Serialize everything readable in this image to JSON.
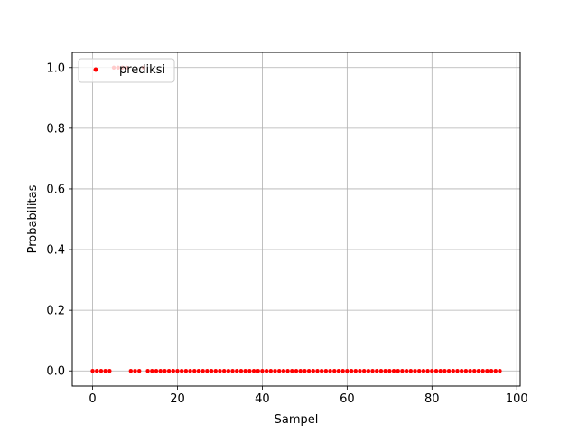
{
  "chart_data": {
    "type": "scatter",
    "title": "",
    "xlabel": "Sampel",
    "ylabel": "Probabilitas",
    "xlim": [
      -4.8,
      100.8
    ],
    "ylim": [
      -0.05,
      1.05
    ],
    "xticks": [
      0,
      20,
      40,
      60,
      80,
      100
    ],
    "yticks": [
      0.0,
      0.2,
      0.4,
      0.6,
      0.8,
      1.0
    ],
    "xtick_labels": [
      "0",
      "20",
      "40",
      "60",
      "80",
      "100"
    ],
    "ytick_labels": [
      "0.0",
      "0.2",
      "0.4",
      "0.6",
      "0.8",
      "1.0"
    ],
    "grid": true,
    "legend_position": "upper left",
    "series": [
      {
        "name": "prediksi",
        "color": "#ff0000",
        "marker": "dot",
        "x": [
          0,
          1,
          2,
          3,
          4,
          5,
          6,
          7,
          8,
          9,
          10,
          11,
          12,
          13,
          14,
          15,
          16,
          17,
          18,
          19,
          20,
          21,
          22,
          23,
          24,
          25,
          26,
          27,
          28,
          29,
          30,
          31,
          32,
          33,
          34,
          35,
          36,
          37,
          38,
          39,
          40,
          41,
          42,
          43,
          44,
          45,
          46,
          47,
          48,
          49,
          50,
          51,
          52,
          53,
          54,
          55,
          56,
          57,
          58,
          59,
          60,
          61,
          62,
          63,
          64,
          65,
          66,
          67,
          68,
          69,
          70,
          71,
          72,
          73,
          74,
          75,
          76,
          77,
          78,
          79,
          80,
          81,
          82,
          83,
          84,
          85,
          86,
          87,
          88,
          89,
          90,
          91,
          92,
          93,
          94,
          95,
          96
        ],
        "y": [
          0,
          0,
          0,
          0,
          0,
          1,
          1,
          1,
          1,
          0,
          0,
          0,
          1,
          0,
          0,
          0,
          0,
          0,
          0,
          0,
          0,
          0,
          0,
          0,
          0,
          0,
          0,
          0,
          0,
          0,
          0,
          0,
          0,
          0,
          0,
          0,
          0,
          0,
          0,
          0,
          0,
          0,
          0,
          0,
          0,
          0,
          0,
          0,
          0,
          0,
          0,
          0,
          0,
          0,
          0,
          0,
          0,
          0,
          0,
          0,
          0,
          0,
          0,
          0,
          0,
          0,
          0,
          0,
          0,
          0,
          0,
          0,
          0,
          0,
          0,
          0,
          0,
          0,
          0,
          0,
          0,
          0,
          0,
          0,
          0,
          0,
          0,
          0,
          0,
          0,
          0,
          0,
          0,
          0,
          0,
          0,
          0
        ]
      }
    ]
  }
}
